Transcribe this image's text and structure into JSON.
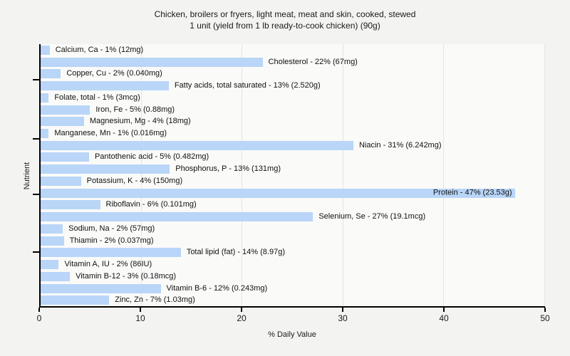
{
  "title": {
    "line1": "Chicken, broilers or fryers, light meat, meat and skin, cooked, stewed",
    "line2": "1 unit (yield from 1 lb ready-to-cook chicken) (90g)"
  },
  "colors": {
    "bar": "#b9d5f8",
    "page_background": "#f3f3f2",
    "plot_background": "#fafaf9",
    "gridline": "#e5e5e3",
    "axis": "#000000"
  },
  "chart_data": {
    "type": "bar",
    "orientation": "horizontal",
    "title": "Chicken, broilers or fryers, light meat, meat and skin, cooked, stewed — 1 unit (yield from 1 lb ready-to-cook chicken) (90g)",
    "xlabel": "% Daily Value",
    "ylabel": "Nutrient",
    "xlim": [
      0,
      50
    ],
    "x_ticks": [
      0,
      10,
      20,
      30,
      40,
      50
    ],
    "grid": "vertical",
    "legend": "none",
    "bars": [
      {
        "nutrient": "Calcium, Ca",
        "percent_dv": 1,
        "amount": "12mg",
        "value": 0.9,
        "label": "Calcium, Ca - 1% (12mg)"
      },
      {
        "nutrient": "Cholesterol",
        "percent_dv": 22,
        "amount": "67mg",
        "value": 22.0,
        "label": "Cholesterol - 22% (67mg)"
      },
      {
        "nutrient": "Copper, Cu",
        "percent_dv": 2,
        "amount": "0.040mg",
        "value": 2.0,
        "label": "Copper, Cu - 2% (0.040mg)"
      },
      {
        "nutrient": "Fatty acids, total saturated",
        "percent_dv": 13,
        "amount": "2.520g",
        "value": 12.7,
        "label": "Fatty acids, total saturated - 13% (2.520g)"
      },
      {
        "nutrient": "Folate, total",
        "percent_dv": 1,
        "amount": "3mcg",
        "value": 0.8,
        "label": "Folate, total - 1% (3mcg)"
      },
      {
        "nutrient": "Iron, Fe",
        "percent_dv": 5,
        "amount": "0.88mg",
        "value": 4.9,
        "label": "Iron, Fe - 5% (0.88mg)"
      },
      {
        "nutrient": "Magnesium, Mg",
        "percent_dv": 4,
        "amount": "18mg",
        "value": 4.3,
        "label": "Magnesium, Mg - 4% (18mg)"
      },
      {
        "nutrient": "Manganese, Mn",
        "percent_dv": 1,
        "amount": "0.016mg",
        "value": 0.8,
        "label": "Manganese, Mn - 1% (0.016mg)"
      },
      {
        "nutrient": "Niacin",
        "percent_dv": 31,
        "amount": "6.242mg",
        "value": 31.0,
        "label": "Niacin - 31% (6.242mg)"
      },
      {
        "nutrient": "Pantothenic acid",
        "percent_dv": 5,
        "amount": "0.482mg",
        "value": 4.8,
        "label": "Pantothenic acid - 5% (0.482mg)"
      },
      {
        "nutrient": "Phosphorus, P",
        "percent_dv": 13,
        "amount": "131mg",
        "value": 12.8,
        "label": "Phosphorus, P - 13% (131mg)"
      },
      {
        "nutrient": "Potassium, K",
        "percent_dv": 4,
        "amount": "150mg",
        "value": 4.0,
        "label": "Potassium, K - 4% (150mg)"
      },
      {
        "nutrient": "Protein",
        "percent_dv": 47,
        "amount": "23.53g",
        "value": 47.0,
        "label": "Protein - 47% (23.53g)"
      },
      {
        "nutrient": "Riboflavin",
        "percent_dv": 6,
        "amount": "0.101mg",
        "value": 5.9,
        "label": "Riboflavin - 6% (0.101mg)"
      },
      {
        "nutrient": "Selenium, Se",
        "percent_dv": 27,
        "amount": "19.1mcg",
        "value": 27.0,
        "label": "Selenium, Se - 27% (19.1mcg)"
      },
      {
        "nutrient": "Sodium, Na",
        "percent_dv": 2,
        "amount": "57mg",
        "value": 2.2,
        "label": "Sodium, Na - 2% (57mg)"
      },
      {
        "nutrient": "Thiamin",
        "percent_dv": 2,
        "amount": "0.037mg",
        "value": 2.3,
        "label": "Thiamin - 2% (0.037mg)"
      },
      {
        "nutrient": "Total lipid (fat)",
        "percent_dv": 14,
        "amount": "8.97g",
        "value": 13.9,
        "label": "Total lipid (fat) - 14% (8.97g)"
      },
      {
        "nutrient": "Vitamin A, IU",
        "percent_dv": 2,
        "amount": "86IU",
        "value": 1.8,
        "label": "Vitamin A, IU - 2% (86IU)"
      },
      {
        "nutrient": "Vitamin B-12",
        "percent_dv": 3,
        "amount": "0.18mcg",
        "value": 2.9,
        "label": "Vitamin B-12 - 3% (0.18mcg)"
      },
      {
        "nutrient": "Vitamin B-6",
        "percent_dv": 12,
        "amount": "0.243mg",
        "value": 11.9,
        "label": "Vitamin B-6 - 12% (0.243mg)"
      },
      {
        "nutrient": "Zinc, Zn",
        "percent_dv": 7,
        "amount": "1.03mg",
        "value": 6.8,
        "label": "Zinc, Zn - 7% (1.03mg)"
      }
    ]
  }
}
